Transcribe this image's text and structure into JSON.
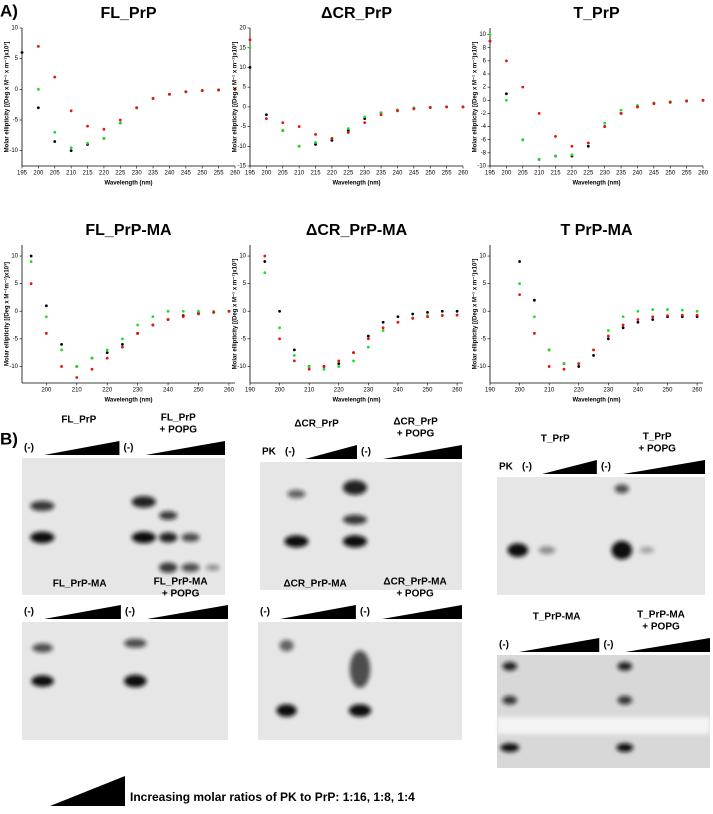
{
  "panel_a": "A)",
  "panel_b": "B)",
  "chart_data": [
    {
      "type": "scatter",
      "title": "FL_PrP",
      "x_label": "Wavelength (nm)",
      "y_label": "Molar ellipticity [(Deg x M⁻¹ x m⁻¹)x10³]",
      "x": [
        195,
        200,
        205,
        210,
        215,
        220,
        225,
        230,
        235,
        240,
        245,
        250,
        255,
        260
      ],
      "xlim": [
        195,
        260
      ],
      "xticks": [
        195,
        200,
        205,
        210,
        215,
        220,
        225,
        230,
        235,
        240,
        245,
        250,
        255,
        260
      ],
      "ylim": [
        -12.5,
        10
      ],
      "yticks": [
        -10,
        -5,
        0,
        5,
        10
      ],
      "series": [
        {
          "color": "#000000",
          "values": [
            6,
            -3,
            -8.5,
            -10,
            -9,
            -8,
            -5.5,
            -3,
            -1.5,
            -0.8,
            -0.4,
            -0.2,
            -0.1,
            0
          ]
        },
        {
          "color": "#22dd22",
          "values": [
            null,
            0,
            -7,
            -9.5,
            -8.8,
            -8,
            -5.5,
            -3,
            -1.5,
            -0.8,
            -0.4,
            -0.2,
            -0.1,
            0
          ]
        },
        {
          "color": "#ee1111",
          "values": [
            null,
            7,
            2,
            -3.5,
            -6,
            -6.5,
            -5,
            -3,
            -1.5,
            -0.8,
            -0.4,
            -0.2,
            -0.1,
            0
          ]
        }
      ]
    },
    {
      "type": "scatter",
      "title": "ΔCR_PrP",
      "x_label": "Wavelength (nm)",
      "y_label": "Molar ellipticity [(Deg x M⁻¹ x m⁻¹)x10³]",
      "x": [
        195,
        200,
        205,
        210,
        215,
        220,
        225,
        230,
        235,
        240,
        245,
        250,
        255,
        260
      ],
      "xlim": [
        195,
        260
      ],
      "xticks": [
        195,
        200,
        205,
        210,
        215,
        220,
        225,
        230,
        235,
        240,
        245,
        250,
        255,
        260
      ],
      "ylim": [
        -15,
        20
      ],
      "yticks": [
        -15,
        -10,
        -5,
        0,
        5,
        10,
        15,
        20
      ],
      "series": [
        {
          "color": "#000000",
          "values": [
            10,
            -2,
            -6,
            -10,
            -9.5,
            -8.5,
            -6,
            -3,
            -1.5,
            -0.8,
            -0.3,
            -0.1,
            0,
            0
          ]
        },
        {
          "color": "#22dd22",
          "values": [
            15,
            -3,
            -6,
            -10,
            -9,
            -8,
            -5.5,
            -2.5,
            -1.5,
            -0.8,
            -0.3,
            -0.1,
            0,
            0
          ]
        },
        {
          "color": "#ee1111",
          "values": [
            17,
            -3,
            -4,
            -5,
            -7,
            -8,
            -6.5,
            -4,
            -2,
            -1,
            -0.5,
            -0.2,
            0,
            0
          ]
        }
      ]
    },
    {
      "type": "scatter",
      "title": "T_PrP",
      "x_label": "Wavelength (nm)",
      "y_label": "Molar ellipticity [(Deg x M⁻¹ x m⁻¹)x10³]",
      "x": [
        195,
        200,
        205,
        210,
        215,
        220,
        225,
        230,
        235,
        240,
        245,
        250,
        255,
        260
      ],
      "xlim": [
        195,
        260
      ],
      "xticks": [
        195,
        200,
        205,
        210,
        215,
        220,
        225,
        230,
        235,
        240,
        245,
        250,
        255,
        260
      ],
      "ylim": [
        -10,
        11
      ],
      "yticks": [
        -10,
        -8,
        -6,
        -4,
        -2,
        0,
        2,
        4,
        6,
        8,
        10
      ],
      "series": [
        {
          "color": "#000000",
          "values": [
            9,
            1,
            -6,
            -9,
            -8.5,
            -8.5,
            -7,
            -4,
            -2,
            -1,
            -0.5,
            -0.3,
            -0.1,
            0
          ]
        },
        {
          "color": "#22dd22",
          "values": [
            10,
            0,
            -6,
            -9,
            -8.5,
            -8.3,
            -6.5,
            -3.5,
            -1.5,
            -0.8,
            -0.4,
            -0.2,
            -0.1,
            0
          ]
        },
        {
          "color": "#ee1111",
          "values": [
            9,
            6,
            2,
            -2,
            -5.5,
            -7,
            -6.5,
            -4,
            -2,
            -1,
            -0.5,
            -0.3,
            -0.1,
            0
          ]
        }
      ]
    },
    {
      "type": "scatter",
      "title": "FL_PrP-MA",
      "x_label": "Wavelength (nm)",
      "y_label": "Molar ellipticity [(Deg x M⁻¹m⁻¹)x10³]",
      "x": [
        195,
        200,
        205,
        210,
        215,
        220,
        225,
        230,
        235,
        240,
        245,
        250,
        255,
        260
      ],
      "xlim": [
        192,
        262
      ],
      "xticks": [
        200,
        210,
        220,
        230,
        240,
        250,
        260
      ],
      "ylim": [
        -13,
        12
      ],
      "yticks": [
        -10,
        -5,
        0,
        5,
        10
      ],
      "series": [
        {
          "color": "#000000",
          "values": [
            10,
            1,
            -6,
            -10,
            -8.5,
            -7.5,
            -6,
            -4,
            -2.5,
            -1.5,
            -0.8,
            -0.4,
            -0.2,
            0
          ]
        },
        {
          "color": "#22dd22",
          "values": [
            9,
            -1,
            -7,
            -10,
            -8.5,
            -7,
            -5,
            -2.5,
            -1,
            0,
            0,
            0,
            0,
            0
          ]
        },
        {
          "color": "#ee1111",
          "values": [
            5,
            -4,
            -10,
            -12,
            -10.5,
            -8.5,
            -6.5,
            -4,
            -2.5,
            -1.5,
            -1,
            -0.5,
            -0.2,
            0
          ]
        }
      ]
    },
    {
      "type": "scatter",
      "title": "ΔCR_PrP-MA",
      "x_label": "Wavelength (nm)",
      "y_label": "Molar ellipticity [(Deg x M⁻¹ x m⁻¹)x10³]",
      "x": [
        195,
        200,
        205,
        210,
        215,
        220,
        225,
        230,
        235,
        240,
        245,
        250,
        255,
        260
      ],
      "xlim": [
        190,
        262
      ],
      "xticks": [
        190,
        200,
        210,
        220,
        230,
        240,
        250,
        260
      ],
      "ylim": [
        -13,
        12
      ],
      "yticks": [
        -10,
        -5,
        0,
        5,
        10
      ],
      "series": [
        {
          "color": "#000000",
          "values": [
            9,
            0,
            -7,
            -10,
            -10,
            -9.5,
            -7.5,
            -4.5,
            -2,
            -1,
            -0.5,
            -0.2,
            0,
            0
          ]
        },
        {
          "color": "#22dd22",
          "values": [
            7,
            -3,
            -8,
            -10,
            -10.5,
            -10,
            -9,
            -6.5,
            -3.5,
            -2,
            -1.2,
            -0.8,
            -0.7,
            -0.7
          ]
        },
        {
          "color": "#ee1111",
          "values": [
            10,
            -5,
            -9,
            -10.5,
            -10,
            -9,
            -7.5,
            -5,
            -3,
            -2,
            -1.3,
            -1,
            -0.8,
            -0.7
          ]
        }
      ]
    },
    {
      "type": "scatter",
      "title": "T  PrP-MA",
      "x_label": "Wavelength (nm)",
      "y_label": "Molar ellipticity [(Deg x M⁻¹ x m⁻¹)x10³]",
      "x": [
        195,
        200,
        205,
        210,
        215,
        220,
        225,
        230,
        235,
        240,
        245,
        250,
        255,
        260
      ],
      "xlim": [
        190,
        262
      ],
      "xticks": [
        190,
        200,
        210,
        220,
        230,
        240,
        250,
        260
      ],
      "ylim": [
        -13,
        12
      ],
      "yticks": [
        -10,
        -5,
        0,
        5,
        10
      ],
      "series": [
        {
          "color": "#000000",
          "values": [
            null,
            9,
            2,
            -7,
            -9.5,
            -10,
            -8,
            -5,
            -3,
            -2,
            -1.5,
            -1,
            -1,
            -1
          ]
        },
        {
          "color": "#22dd22",
          "values": [
            null,
            5,
            -1,
            -7,
            -9.5,
            -9.5,
            -7,
            -3.5,
            -1,
            0,
            0.3,
            0.3,
            0.2,
            0
          ]
        },
        {
          "color": "#ee1111",
          "values": [
            null,
            3,
            -4,
            -10,
            -10.5,
            -9.5,
            -7,
            -4.5,
            -2.5,
            -1.5,
            -1,
            -0.8,
            -0.7,
            -0.7
          ]
        }
      ]
    }
  ],
  "gels": [
    {
      "title": "FL_PrP",
      "title_popg": "FL_PrP",
      "popg": "+ POPG",
      "minus": [
        "(-)",
        "(-)"
      ]
    },
    {
      "title": "ΔCR_PrP",
      "title_popg": "ΔCR_PrP",
      "popg": "+ POPG",
      "pk": "PK",
      "minus": [
        "(-)",
        "(-)"
      ]
    },
    {
      "title": "T_PrP",
      "title_popg": "T_PrP",
      "popg": "+ POPG",
      "pk": "PK",
      "minus": [
        "(-)",
        "(-)"
      ]
    },
    {
      "title": "FL_PrP-MA",
      "title_popg": "FL_PrP-MA",
      "popg": "+ POPG",
      "minus": [
        "(-)",
        "(-)"
      ]
    },
    {
      "title": "ΔCR_PrP-MA",
      "title_popg": "ΔCR_PrP-MA",
      "popg": "+ POPG",
      "minus": [
        "(-)",
        "(-)"
      ]
    },
    {
      "title": "T_PrP-MA",
      "title_popg": "T_PrP-MA",
      "popg": "+ POPG",
      "minus": [
        "(-)",
        "(-)"
      ]
    }
  ],
  "footer": "Increasing molar ratios of PK to PrP: 1:16, 1:8, 1:4"
}
